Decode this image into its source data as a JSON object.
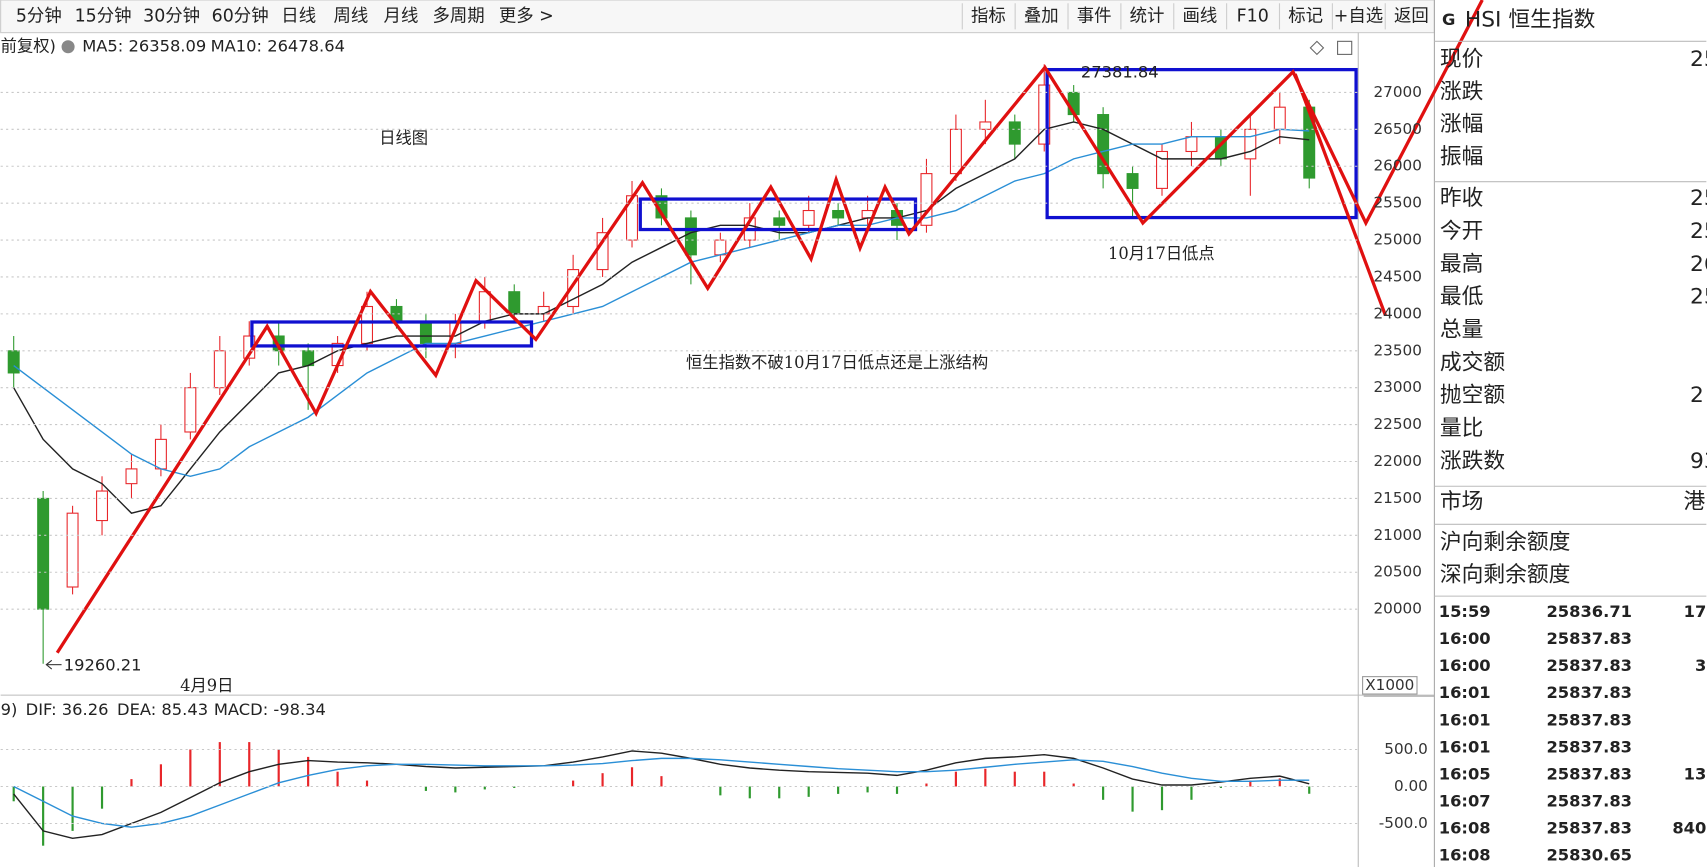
{
  "toolbar": {
    "periods": [
      "5分钟",
      "15分钟",
      "30分钟",
      "60分钟",
      "日线",
      "周线",
      "月线",
      "多周期",
      "更多 >"
    ],
    "buttons": [
      "指标",
      "叠加",
      "事件",
      "统计",
      "画线",
      "F10",
      "标记",
      "+自选",
      "返回"
    ]
  },
  "chart": {
    "adjust_label": "前复权)",
    "legend": {
      "ma5": "MA5: 26358.09",
      "ma10": "MA10: 26478.64"
    },
    "candles": {
      "open": [
        23500,
        21500,
        20300,
        21200,
        21700,
        21900,
        22400,
        23000,
        23400,
        23700,
        23500,
        23300,
        23600,
        24100,
        23900,
        23600,
        23900,
        24300,
        24000,
        24100,
        24600,
        25000,
        25600,
        25300,
        24800,
        25000,
        25300,
        25200,
        25400,
        25300,
        25400,
        25200,
        25900,
        26500,
        26600,
        26300,
        27000,
        26700,
        25900,
        25700,
        26200,
        26400,
        26100,
        26500,
        26800
      ],
      "high": [
        23700,
        21600,
        21400,
        21800,
        22100,
        22500,
        23200,
        23700,
        23900,
        23900,
        23600,
        23700,
        24300,
        24200,
        24000,
        24000,
        24500,
        24400,
        24300,
        24800,
        25300,
        25800,
        25700,
        25400,
        25100,
        25500,
        25400,
        25600,
        25500,
        25600,
        25500,
        26100,
        26700,
        26900,
        26700,
        27381.84,
        27100,
        26800,
        26000,
        26300,
        26600,
        26500,
        26700,
        27000,
        26900
      ],
      "low": [
        23000,
        19260.21,
        20200,
        21000,
        21500,
        21800,
        22300,
        22900,
        23300,
        23300,
        22700,
        23200,
        23500,
        23800,
        23400,
        23400,
        23800,
        23900,
        23900,
        24000,
        24500,
        24900,
        25200,
        24400,
        24700,
        24900,
        25000,
        25100,
        25200,
        25100,
        25000,
        25100,
        25800,
        26300,
        26100,
        26200,
        26600,
        25700,
        25300,
        25600,
        26000,
        26000,
        25600,
        26300,
        25700
      ],
      "close": [
        23200,
        20000,
        21300,
        21600,
        21900,
        22300,
        23000,
        23500,
        23700,
        23500,
        23300,
        23600,
        24100,
        23900,
        23600,
        23900,
        24300,
        24000,
        24100,
        24600,
        25100,
        25600,
        25300,
        24800,
        25000,
        25300,
        25200,
        25400,
        25300,
        25400,
        25200,
        25900,
        26500,
        26600,
        26300,
        27100,
        26700,
        25900,
        25700,
        26200,
        26400,
        26100,
        26500,
        26800,
        25840
      ]
    },
    "up_color": "#e8262a",
    "down_color": "#2f9a2f",
    "ma5": {
      "color": "#222222",
      "values": [
        23000,
        22300,
        21900,
        21700,
        21300,
        21400,
        21900,
        22400,
        22800,
        23200,
        23300,
        23500,
        23600,
        23700,
        23700,
        23700,
        23900,
        24000,
        24000,
        24200,
        24400,
        24700,
        24900,
        25100,
        25200,
        25200,
        25100,
        25100,
        25200,
        25300,
        25300,
        25400,
        25700,
        25900,
        26100,
        26500,
        26600,
        26500,
        26300,
        26100,
        26100,
        26100,
        26200,
        26400,
        26358.09
      ]
    },
    "ma10": {
      "color": "#2a8fd6",
      "values": [
        23300,
        23000,
        22700,
        22400,
        22100,
        21900,
        21800,
        21900,
        22200,
        22400,
        22600,
        22900,
        23200,
        23400,
        23600,
        23600,
        23700,
        23800,
        23900,
        24000,
        24100,
        24300,
        24500,
        24700,
        24800,
        24900,
        25000,
        25100,
        25200,
        25200,
        25300,
        25300,
        25400,
        25600,
        25800,
        25900,
        26100,
        26200,
        26300,
        26300,
        26400,
        26400,
        26400,
        26500,
        26478.64
      ]
    },
    "ylim": [
      18850,
      27810
    ],
    "yticks": [
      20000,
      20500,
      21000,
      21500,
      22000,
      22500,
      23000,
      23500,
      24000,
      24500,
      25000,
      25500,
      26000,
      26500,
      27000
    ],
    "unit_label": "X1000",
    "annotations": {
      "title": "日线图",
      "low_label": "10月17日低点",
      "comment": "恒生指数不破10月17日低点还是上涨结构",
      "date_label": "4月9日"
    },
    "macd": {
      "legend": {
        "params": "9)",
        "dif": "DIF: 36.26",
        "dea": "DEA: 85.43",
        "macd": "MACD: -98.34"
      },
      "dif": [
        -100,
        -600,
        -700,
        -650,
        -500,
        -350,
        -150,
        50,
        200,
        300,
        350,
        330,
        320,
        300,
        270,
        250,
        260,
        270,
        280,
        330,
        400,
        480,
        450,
        380,
        300,
        250,
        220,
        200,
        190,
        180,
        150,
        220,
        320,
        380,
        400,
        430,
        380,
        250,
        100,
        20,
        20,
        60,
        110,
        140,
        36.26
      ],
      "dea": [
        0,
        -200,
        -400,
        -500,
        -550,
        -500,
        -400,
        -250,
        -100,
        50,
        150,
        230,
        280,
        300,
        300,
        290,
        280,
        280,
        280,
        290,
        310,
        350,
        380,
        380,
        360,
        330,
        300,
        270,
        240,
        220,
        200,
        200,
        220,
        260,
        300,
        330,
        360,
        340,
        270,
        180,
        110,
        70,
        70,
        85,
        85.43
      ],
      "hist": [
        -200,
        -800,
        -600,
        -300,
        100,
        300,
        500,
        600,
        600,
        500,
        400,
        200,
        80,
        0,
        -60,
        -80,
        -40,
        -20,
        0,
        80,
        180,
        260,
        140,
        0,
        -120,
        -160,
        -160,
        -140,
        -100,
        -80,
        -100,
        40,
        200,
        240,
        200,
        200,
        40,
        -180,
        -340,
        -320,
        -180,
        -20,
        80,
        110,
        -98.34
      ],
      "ylim": [
        -1088,
        1220
      ],
      "yticks": [
        {
          "value": 500,
          "label": "500.0"
        },
        {
          "value": 0,
          "label": "0.00"
        },
        {
          "value": -500,
          "label": "-500.0"
        }
      ]
    }
  },
  "panel": {
    "code": "G",
    "name": "HSI 恒生指数",
    "group1": [
      {
        "label": "现价",
        "value": "25"
      },
      {
        "label": "涨跌",
        "value": ""
      },
      {
        "label": "涨幅",
        "value": ""
      },
      {
        "label": "振幅",
        "value": ""
      }
    ],
    "group2": [
      {
        "label": "昨收",
        "value": "25"
      },
      {
        "label": "今开",
        "value": "25"
      },
      {
        "label": "最高",
        "value": "26"
      },
      {
        "label": "最低",
        "value": "25"
      },
      {
        "label": "总量",
        "value": ""
      },
      {
        "label": "成交额",
        "value": ""
      },
      {
        "label": "抛空额",
        "value": "2"
      },
      {
        "label": "量比",
        "value": ""
      },
      {
        "label": "涨跌数",
        "value": "93"
      }
    ],
    "market": {
      "label": "市场",
      "value": "港"
    },
    "quota": [
      "沪向剩余额度",
      "深向剩余额度"
    ],
    "ticks": [
      [
        "15:59",
        "25836.71",
        "17"
      ],
      [
        "16:00",
        "25837.83",
        ""
      ],
      [
        "16:00",
        "25837.83",
        "3"
      ],
      [
        "16:01",
        "25837.83",
        ""
      ],
      [
        "16:01",
        "25837.83",
        ""
      ],
      [
        "16:01",
        "25837.83",
        ""
      ],
      [
        "16:05",
        "25837.83",
        "13"
      ],
      [
        "16:07",
        "25837.83",
        ""
      ],
      [
        "16:08",
        "25837.83",
        "840"
      ],
      [
        "16:08",
        "25830.65",
        ""
      ]
    ]
  }
}
